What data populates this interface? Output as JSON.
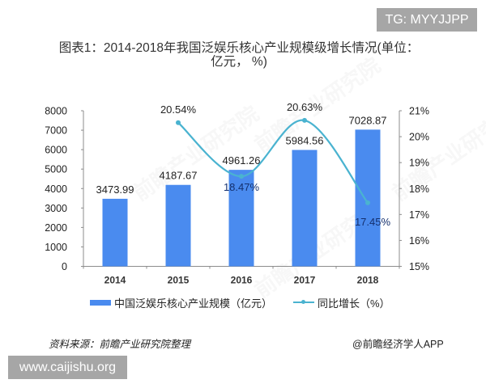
{
  "badges": {
    "top_right": "TG: MYYJJPP",
    "bottom_left": "www.caijishu.org"
  },
  "title": {
    "line1": "图表1：2014-2018年我国泛娱乐核心产业规模级增长情况(单位：",
    "line2": "亿元， %)"
  },
  "watermark_text": "前瞻产业研究院",
  "legend": {
    "bar_label": "中国泛娱乐核心产业规模（亿元）",
    "line_label": "同比增长（%）"
  },
  "footer": {
    "source": "资料来源：前瞻产业研究院整理",
    "credit": "@前瞻经济学人APP"
  },
  "colors": {
    "bar": "#4a8bef",
    "line": "#4ab3d0",
    "axis": "#8c8c8c",
    "label_dark": "#222222",
    "label_inside": "#14306e"
  },
  "chart_data": {
    "type": "bar+line",
    "title": "图表1：2014-2018年我国泛娱乐核心产业规模级增长情况(单位：亿元，%)",
    "categories": [
      "2014",
      "2015",
      "2016",
      "2017",
      "2018"
    ],
    "series": [
      {
        "name": "中国泛娱乐核心产业规模（亿元）",
        "type": "bar",
        "axis": "left",
        "values": [
          3473.99,
          4187.67,
          4961.26,
          5984.56,
          7028.87
        ],
        "labels": [
          "3473.99",
          "4187.67",
          "4961.26",
          "5984.56",
          "7028.87"
        ]
      },
      {
        "name": "同比增长（%）",
        "type": "line",
        "smooth": true,
        "axis": "right",
        "values": [
          null,
          20.54,
          18.47,
          20.63,
          17.45
        ],
        "labels": [
          null,
          "20.54%",
          "18.47%",
          "20.63%",
          "17.45%"
        ],
        "label_positions": [
          null,
          "above",
          "below",
          "above",
          "below"
        ]
      }
    ],
    "y_left": {
      "min": 0,
      "max": 8000,
      "ticks": [
        "0",
        "1000",
        "2000",
        "3000",
        "4000",
        "5000",
        "6000",
        "7000",
        "8000"
      ]
    },
    "y_right": {
      "min": 15,
      "max": 21,
      "ticks": [
        "15%",
        "16%",
        "17%",
        "18%",
        "19%",
        "20%",
        "21%"
      ]
    },
    "xlabel": "",
    "ylabel": "",
    "grid": false,
    "legend_position": "bottom"
  }
}
